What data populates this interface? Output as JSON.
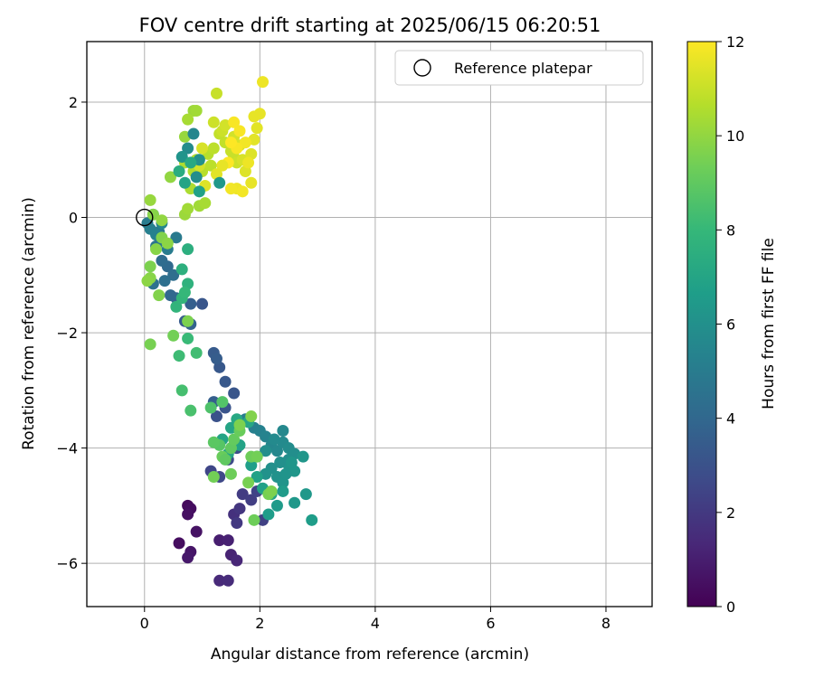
{
  "chart_data": {
    "type": "scatter",
    "title": "FOV centre drift starting at 2025/06/15 06:20:51",
    "xlabel": "Angular distance from reference (arcmin)",
    "ylabel": "Rotation from reference (arcmin)",
    "xlim": [
      -1.0,
      8.8
    ],
    "ylim": [
      -6.75,
      3.05
    ],
    "xticks": [
      0,
      2,
      4,
      6,
      8
    ],
    "yticks": [
      -6,
      -4,
      -2,
      0,
      2
    ],
    "xtick_labels": [
      "0",
      "2",
      "4",
      "6",
      "8"
    ],
    "ytick_labels": [
      "−6",
      "−4",
      "−2",
      "0",
      "2"
    ],
    "grid": true,
    "legend": {
      "position": "top-right",
      "entries": [
        "Reference platepar"
      ]
    },
    "reference_point": {
      "x": 0.0,
      "y": 0.0,
      "label": "Reference platepar",
      "marker": "open-circle"
    },
    "colorbar": {
      "label": "Hours from first FF file",
      "colormap": "viridis",
      "range": [
        0,
        12
      ],
      "ticks": [
        0,
        2,
        4,
        6,
        8,
        10,
        12
      ],
      "tick_labels": [
        "0",
        "2",
        "4",
        "6",
        "8",
        "10",
        "12"
      ]
    },
    "colormap_stops": [
      "#440154",
      "#482878",
      "#3e4a89",
      "#31688e",
      "#26828e",
      "#1f9e89",
      "#35b779",
      "#6ece58",
      "#b5de2b",
      "#fde725"
    ],
    "series": [
      {
        "points": [
          [
            0.75,
            -5.0,
            0.3
          ],
          [
            0.8,
            -5.05,
            0.4
          ],
          [
            0.75,
            -5.15,
            0.5
          ],
          [
            0.9,
            -5.45,
            0.6
          ],
          [
            0.6,
            -5.65,
            0.4
          ],
          [
            0.8,
            -5.8,
            0.7
          ],
          [
            0.75,
            -5.9,
            0.8
          ],
          [
            1.3,
            -5.6,
            1.0
          ],
          [
            1.45,
            -5.6,
            1.1
          ],
          [
            1.5,
            -5.85,
            1.2
          ],
          [
            1.6,
            -5.95,
            1.3
          ],
          [
            1.3,
            -6.3,
            1.4
          ],
          [
            1.45,
            -6.3,
            1.5
          ],
          [
            1.55,
            -5.15,
            1.7
          ],
          [
            1.65,
            -5.05,
            1.9
          ],
          [
            1.6,
            -5.3,
            2.0
          ],
          [
            1.7,
            -4.8,
            2.1
          ],
          [
            1.85,
            -4.9,
            2.2
          ],
          [
            2.05,
            -5.25,
            2.3
          ],
          [
            1.95,
            -4.75,
            2.4
          ],
          [
            1.15,
            -4.4,
            2.5
          ],
          [
            1.3,
            -4.5,
            2.6
          ],
          [
            1.45,
            -4.2,
            2.7
          ],
          [
            1.6,
            -4.0,
            2.9
          ],
          [
            1.25,
            -3.45,
            3.0
          ],
          [
            1.4,
            -3.3,
            3.1
          ],
          [
            1.55,
            -3.05,
            3.2
          ],
          [
            1.4,
            -2.85,
            3.3
          ],
          [
            1.3,
            -2.6,
            3.3
          ],
          [
            1.2,
            -2.35,
            3.4
          ],
          [
            1.25,
            -2.45,
            3.5
          ],
          [
            1.2,
            -3.2,
            3.6
          ],
          [
            1.0,
            -1.5,
            3.2
          ],
          [
            0.7,
            -1.8,
            3.4
          ],
          [
            0.8,
            -1.5,
            3.6
          ],
          [
            0.8,
            -1.85,
            3.8
          ],
          [
            0.55,
            -1.4,
            3.9
          ],
          [
            0.45,
            -1.35,
            4.0
          ],
          [
            0.4,
            -0.85,
            4.1
          ],
          [
            0.3,
            -0.75,
            4.2
          ],
          [
            0.5,
            -1.0,
            4.3
          ],
          [
            0.35,
            -1.1,
            4.4
          ],
          [
            0.15,
            -1.15,
            4.5
          ],
          [
            0.2,
            -0.5,
            4.6
          ],
          [
            0.3,
            -0.4,
            4.7
          ],
          [
            0.25,
            -0.25,
            4.8
          ],
          [
            0.55,
            -0.35,
            4.9
          ],
          [
            0.4,
            -0.55,
            5.0
          ],
          [
            0.05,
            -0.1,
            5.0
          ],
          [
            0.1,
            -0.2,
            5.2
          ],
          [
            0.15,
            0.05,
            5.4
          ],
          [
            0.3,
            -0.1,
            5.5
          ],
          [
            0.2,
            -0.3,
            5.3
          ],
          [
            1.75,
            -3.5,
            5.1
          ],
          [
            1.9,
            -3.65,
            5.2
          ],
          [
            2.0,
            -3.7,
            5.3
          ],
          [
            2.1,
            -3.8,
            5.4
          ],
          [
            2.2,
            -3.95,
            5.5
          ],
          [
            2.3,
            -4.05,
            5.6
          ],
          [
            2.4,
            -3.9,
            5.7
          ],
          [
            2.5,
            -4.0,
            5.8
          ],
          [
            2.6,
            -4.1,
            5.9
          ],
          [
            2.4,
            -3.7,
            5.6
          ],
          [
            2.5,
            -4.2,
            5.9
          ],
          [
            2.2,
            -4.35,
            6.0
          ],
          [
            2.1,
            -4.45,
            6.1
          ],
          [
            2.3,
            -4.5,
            6.1
          ],
          [
            2.4,
            -4.6,
            6.2
          ],
          [
            2.5,
            -4.3,
            6.2
          ],
          [
            2.6,
            -4.4,
            6.3
          ],
          [
            2.75,
            -4.15,
            6.3
          ],
          [
            2.8,
            -4.8,
            6.4
          ],
          [
            2.6,
            -4.95,
            6.4
          ],
          [
            2.4,
            -4.75,
            6.5
          ],
          [
            2.3,
            -5.0,
            6.5
          ],
          [
            2.9,
            -5.25,
            6.6
          ],
          [
            2.15,
            -5.15,
            6.6
          ],
          [
            1.95,
            -4.15,
            6.7
          ],
          [
            1.85,
            -4.3,
            6.7
          ],
          [
            1.95,
            -4.5,
            6.8
          ],
          [
            2.05,
            -4.7,
            6.8
          ],
          [
            2.2,
            -4.8,
            6.9
          ],
          [
            1.65,
            -3.95,
            6.9
          ],
          [
            1.5,
            -3.65,
            7.0
          ],
          [
            1.35,
            -3.85,
            7.0
          ],
          [
            1.45,
            -4.1,
            7.1
          ],
          [
            1.8,
            -3.55,
            7.1
          ],
          [
            1.6,
            -3.5,
            7.2
          ],
          [
            2.1,
            -4.05,
            5.9
          ],
          [
            2.25,
            -3.85,
            5.7
          ],
          [
            2.35,
            -4.25,
            6.0
          ],
          [
            2.45,
            -4.45,
            6.2
          ],
          [
            2.55,
            -4.25,
            6.3
          ],
          [
            0.75,
            -0.55,
            7.5
          ],
          [
            0.65,
            -0.9,
            7.6
          ],
          [
            0.75,
            -1.15,
            7.7
          ],
          [
            0.55,
            -1.55,
            7.8
          ],
          [
            0.65,
            -1.4,
            7.9
          ],
          [
            0.7,
            -1.3,
            8.0
          ],
          [
            0.75,
            -2.1,
            8.1
          ],
          [
            0.6,
            -2.4,
            8.2
          ],
          [
            0.9,
            -2.35,
            8.3
          ],
          [
            0.65,
            -3.0,
            8.4
          ],
          [
            0.8,
            -3.35,
            8.5
          ],
          [
            1.15,
            -3.3,
            8.6
          ],
          [
            1.35,
            -3.2,
            8.7
          ],
          [
            1.3,
            -3.95,
            8.8
          ],
          [
            1.2,
            -3.9,
            8.9
          ],
          [
            1.5,
            -4.0,
            9.0
          ],
          [
            1.55,
            -3.85,
            9.1
          ],
          [
            1.65,
            -3.7,
            9.2
          ],
          [
            1.85,
            -4.15,
            9.3
          ],
          [
            1.95,
            -4.15,
            9.4
          ],
          [
            1.35,
            -4.15,
            9.2
          ],
          [
            1.5,
            -4.45,
            9.3
          ],
          [
            1.2,
            -4.5,
            9.4
          ],
          [
            1.8,
            -4.6,
            9.5
          ],
          [
            1.9,
            -5.25,
            9.3
          ],
          [
            1.65,
            -3.6,
            9.6
          ],
          [
            1.85,
            -3.45,
            9.7
          ],
          [
            2.15,
            -4.8,
            9.5
          ],
          [
            2.2,
            -4.75,
            9.6
          ],
          [
            1.4,
            -4.2,
            9.0
          ],
          [
            0.5,
            -2.05,
            9.4
          ],
          [
            0.75,
            -1.8,
            9.6
          ],
          [
            0.25,
            -1.35,
            9.7
          ],
          [
            0.1,
            -1.05,
            9.8
          ],
          [
            0.05,
            -1.1,
            9.9
          ],
          [
            0.1,
            -0.85,
            9.6
          ],
          [
            0.2,
            -0.55,
            9.8
          ],
          [
            0.3,
            -0.35,
            9.7
          ],
          [
            0.4,
            -0.45,
            9.9
          ],
          [
            0.1,
            -2.2,
            9.5
          ],
          [
            0.15,
            0.05,
            9.8
          ],
          [
            0.3,
            -0.05,
            10.0
          ],
          [
            0.1,
            0.3,
            10.1
          ],
          [
            0.7,
            0.05,
            10.2
          ],
          [
            0.75,
            0.15,
            10.3
          ],
          [
            0.95,
            0.2,
            10.3
          ],
          [
            1.05,
            0.25,
            10.4
          ],
          [
            0.45,
            0.7,
            10.0
          ],
          [
            0.7,
            1.4,
            10.1
          ],
          [
            0.85,
            1.85,
            10.2
          ],
          [
            0.9,
            1.85,
            10.3
          ],
          [
            0.75,
            1.7,
            10.4
          ],
          [
            0.7,
            0.95,
            10.5
          ],
          [
            0.8,
            0.5,
            10.5
          ],
          [
            0.85,
            0.8,
            10.6
          ],
          [
            0.9,
            1.0,
            10.6
          ],
          [
            1.0,
            0.8,
            10.7
          ],
          [
            1.1,
            1.1,
            10.7
          ],
          [
            1.15,
            0.9,
            10.8
          ],
          [
            1.2,
            1.2,
            10.8
          ],
          [
            1.3,
            1.45,
            10.9
          ],
          [
            1.4,
            1.3,
            10.9
          ],
          [
            1.5,
            1.15,
            11.0
          ],
          [
            1.55,
            1.05,
            11.0
          ],
          [
            1.6,
            0.95,
            11.1
          ],
          [
            1.25,
            2.15,
            11.0
          ],
          [
            1.2,
            1.65,
            11.1
          ],
          [
            1.35,
            1.5,
            11.1
          ],
          [
            1.4,
            1.6,
            11.2
          ],
          [
            1.55,
            1.4,
            11.2
          ],
          [
            1.65,
            1.25,
            11.3
          ],
          [
            1.7,
            1.0,
            11.3
          ],
          [
            1.75,
            0.8,
            11.4
          ],
          [
            1.85,
            1.1,
            11.4
          ],
          [
            1.9,
            1.35,
            11.5
          ],
          [
            1.95,
            1.55,
            11.5
          ],
          [
            1.9,
            1.75,
            11.6
          ],
          [
            2.0,
            1.8,
            11.6
          ],
          [
            2.05,
            2.35,
            11.7
          ],
          [
            1.6,
            0.5,
            11.7
          ],
          [
            1.5,
            0.5,
            11.8
          ],
          [
            1.7,
            0.45,
            11.8
          ],
          [
            1.55,
            1.65,
            11.9
          ],
          [
            1.65,
            1.5,
            11.9
          ],
          [
            1.45,
            0.95,
            12.0
          ],
          [
            1.35,
            0.9,
            11.6
          ],
          [
            1.25,
            0.75,
            11.5
          ],
          [
            1.05,
            0.55,
            11.4
          ],
          [
            1.0,
            1.2,
            11.3
          ],
          [
            0.95,
            0.9,
            11.2
          ],
          [
            1.75,
            1.3,
            11.8
          ],
          [
            1.6,
            1.2,
            11.9
          ],
          [
            1.5,
            1.3,
            12.0
          ],
          [
            1.8,
            0.95,
            11.7
          ],
          [
            1.85,
            0.6,
            11.6
          ],
          [
            0.85,
            1.45,
            5.5
          ],
          [
            0.75,
            1.2,
            5.8
          ],
          [
            0.65,
            1.05,
            6.2
          ],
          [
            0.95,
            1.0,
            6.0
          ],
          [
            0.9,
            0.7,
            5.9
          ],
          [
            1.3,
            0.6,
            6.4
          ],
          [
            0.8,
            0.95,
            7.2
          ],
          [
            0.6,
            0.8,
            7.4
          ],
          [
            0.95,
            0.45,
            6.8
          ],
          [
            0.7,
            0.6,
            7.0
          ]
        ]
      }
    ]
  }
}
